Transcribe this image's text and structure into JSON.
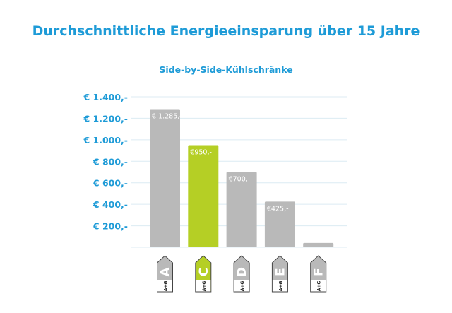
{
  "chart_data": {
    "type": "bar",
    "title": "Durchschnittliche Energieeinsparung über 15 Jahre",
    "subtitle": "Side-by-Side-Kühlschränke",
    "categories": [
      "A",
      "C",
      "D",
      "E",
      "F"
    ],
    "category_sublabel": "A+G",
    "values": [
      1285,
      950,
      700,
      425,
      40
    ],
    "data_labels": [
      "€ 1.285,-",
      "€950,-",
      "€700,-",
      "€425,-",
      ""
    ],
    "y_ticks": [
      200,
      400,
      600,
      800,
      1000,
      1200,
      1400
    ],
    "y_tick_labels": [
      "€ 200,-",
      "€ 400,-",
      "€ 600,-",
      "€ 800,-",
      "€ 1.000,-",
      "€ 1.200,-",
      "€ 1.400,-"
    ],
    "ylim": [
      0,
      1400
    ],
    "grid": true,
    "highlight_category": "C",
    "colors": {
      "bar": "#b9b9b9",
      "highlight": "#b5cf25",
      "title": "#1e9bd7",
      "grid": "#dcebf3"
    }
  }
}
